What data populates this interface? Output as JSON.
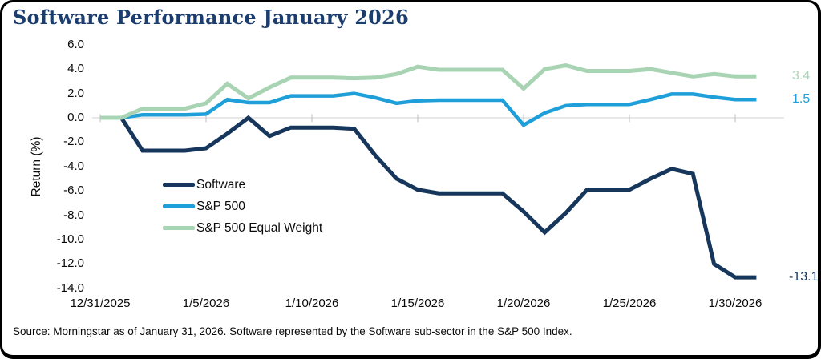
{
  "title": "Software Performance January 2026",
  "source_note": "Source: Morningstar as of January 31, 2026. Software represented by the Software sub-sector in the S&P 500 Index.",
  "colors": {
    "title_text": "#1C3E6E",
    "axis_text": "#0A0A0A",
    "zero_gridline": "#D9D9D9",
    "tick_mark": "#BFBFBF",
    "frame_border": "#000000",
    "background": "#FFFFFF"
  },
  "chart_data": {
    "type": "line",
    "title": "Software Performance January 2026",
    "xlabel": "",
    "ylabel": "Return (%)",
    "ylim": [
      -14.0,
      6.0
    ],
    "ytick_labels": [
      "6.0",
      "4.0",
      "2.0",
      "0.0",
      "-2.0",
      "-4.0",
      "-6.0",
      "-8.0",
      "-10.0",
      "-12.0",
      "-14.0"
    ],
    "ytick_values": [
      6,
      4,
      2,
      0,
      -2,
      -4,
      -6,
      -8,
      -10,
      -12,
      -14
    ],
    "xtick_labels": [
      "12/31/2025",
      "1/5/2026",
      "1/10/2026",
      "1/15/2026",
      "1/20/2026",
      "1/25/2026",
      "1/30/2026"
    ],
    "xtick_days": [
      0,
      5,
      10,
      15,
      20,
      25,
      30
    ],
    "grid": "zero-line-only",
    "legend_position": "inside-middle-left",
    "weekend_carry_forward": true,
    "x_dates": [
      "12/31/2025",
      "1/2/2026",
      "1/5/2026",
      "1/6/2026",
      "1/7/2026",
      "1/8/2026",
      "1/9/2026",
      "1/12/2026",
      "1/13/2026",
      "1/14/2026",
      "1/15/2026",
      "1/16/2026",
      "1/20/2026",
      "1/21/2026",
      "1/22/2026",
      "1/23/2026",
      "1/26/2026",
      "1/27/2026",
      "1/28/2026",
      "1/29/2026",
      "1/30/2026",
      "1/31/2026"
    ],
    "x_days": [
      0,
      2,
      5,
      6,
      7,
      8,
      9,
      12,
      13,
      14,
      15,
      16,
      20,
      21,
      22,
      23,
      26,
      27,
      28,
      29,
      30,
      31
    ],
    "series": [
      {
        "name": "Software",
        "color": "#17365C",
        "line_width": 5,
        "end_label": "-13.1",
        "values": [
          0.0,
          -2.7,
          -2.5,
          -1.3,
          0.0,
          -1.5,
          -0.8,
          -0.9,
          -3.1,
          -5.0,
          -5.9,
          -6.2,
          -7.7,
          -9.4,
          -7.8,
          -5.9,
          -5.0,
          -4.2,
          -4.6,
          -12.0,
          -13.1,
          -13.1
        ]
      },
      {
        "name": "S&P 500",
        "color": "#1E9FD9",
        "line_width": 4.5,
        "end_label": "1.5",
        "values": [
          0.0,
          0.25,
          0.3,
          1.5,
          1.25,
          1.25,
          1.8,
          2.0,
          1.65,
          1.2,
          1.4,
          1.45,
          -0.6,
          0.4,
          1.0,
          1.1,
          1.5,
          1.95,
          1.95,
          1.7,
          1.5,
          1.5
        ]
      },
      {
        "name": "S&P 500 Equal Weight",
        "color": "#A8D4B4",
        "line_width": 5,
        "end_label": "3.4",
        "values": [
          0.0,
          0.75,
          1.2,
          2.8,
          1.6,
          2.5,
          3.3,
          3.25,
          3.3,
          3.6,
          4.2,
          3.95,
          2.4,
          4.0,
          4.3,
          3.85,
          4.0,
          3.7,
          3.4,
          3.6,
          3.4,
          3.4
        ]
      }
    ]
  }
}
